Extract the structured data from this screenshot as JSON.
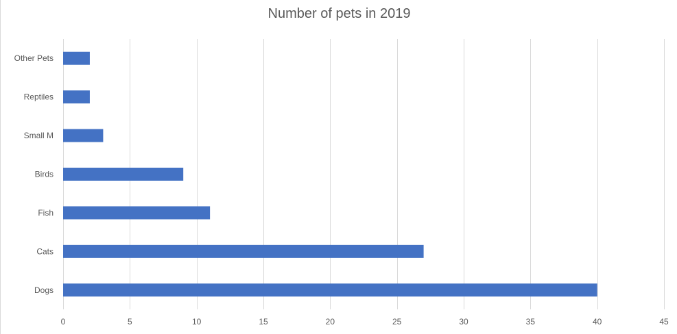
{
  "chart_data": {
    "type": "bar",
    "orientation": "horizontal",
    "title": "Number of pets in 2019",
    "categories": [
      "Dogs",
      "Cats",
      "Fish",
      "Birds",
      "Small M",
      "Reptiles",
      "Other Pets"
    ],
    "values": [
      40,
      27,
      11,
      9,
      3,
      2,
      2
    ],
    "xlim": [
      0,
      45
    ],
    "xticks": [
      0,
      5,
      10,
      15,
      20,
      25,
      30,
      35,
      40,
      45
    ],
    "xlabel": "",
    "ylabel": "",
    "grid": "vertical",
    "legend": "none",
    "bar_color": "#4472C4",
    "grid_color": "#d9d9d9"
  }
}
